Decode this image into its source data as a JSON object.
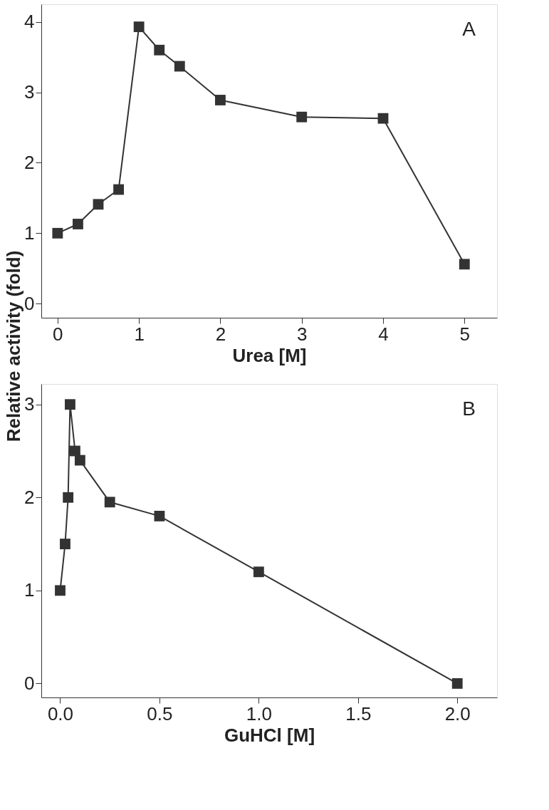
{
  "chart_data": [
    {
      "type": "line",
      "xlabel": "Urea [M]",
      "ylabel": "Relative activity (fold)",
      "annotations": [
        "A"
      ],
      "x": [
        0,
        0.25,
        0.5,
        0.75,
        1,
        1.25,
        1.5,
        2,
        3,
        4,
        5
      ],
      "series": [
        {
          "color": "#333333",
          "values": [
            1.0,
            1.13,
            1.41,
            1.62,
            3.93,
            3.6,
            3.37,
            2.89,
            2.65,
            2.63,
            0.56
          ]
        }
      ],
      "xlim": [
        -0.2,
        5.4
      ],
      "xticks": [
        0,
        1,
        2,
        3,
        4,
        5
      ],
      "ylim": [
        -0.2,
        4.25
      ],
      "yticks": [
        0,
        1,
        2,
        3,
        4
      ],
      "marker": "square",
      "line_style": "solid",
      "grid": false,
      "legend": false
    },
    {
      "type": "line",
      "xlabel": "GuHCl [M]",
      "annotations": [
        "B"
      ],
      "x": [
        0,
        0.025,
        0.04,
        0.05,
        0.075,
        0.1,
        0.25,
        0.5,
        1,
        2
      ],
      "series": [
        {
          "color": "#333333",
          "values": [
            1.0,
            1.5,
            2.0,
            3.0,
            2.5,
            2.4,
            1.95,
            1.8,
            1.2,
            0.0
          ]
        }
      ],
      "xlim": [
        -0.095,
        2.2
      ],
      "xticks": [
        {
          "value": 0,
          "label": "0.0"
        },
        {
          "value": 0.5,
          "label": "0.5"
        },
        {
          "value": 1,
          "label": "1.0"
        },
        {
          "value": 1.5,
          "label": "1.5"
        },
        {
          "value": 2,
          "label": "2.0"
        }
      ],
      "ylim": [
        -0.15,
        3.22
      ],
      "yticks": [
        0,
        1,
        2,
        3
      ],
      "marker": "square",
      "line_style": "solid",
      "grid": false,
      "legend": false
    }
  ]
}
